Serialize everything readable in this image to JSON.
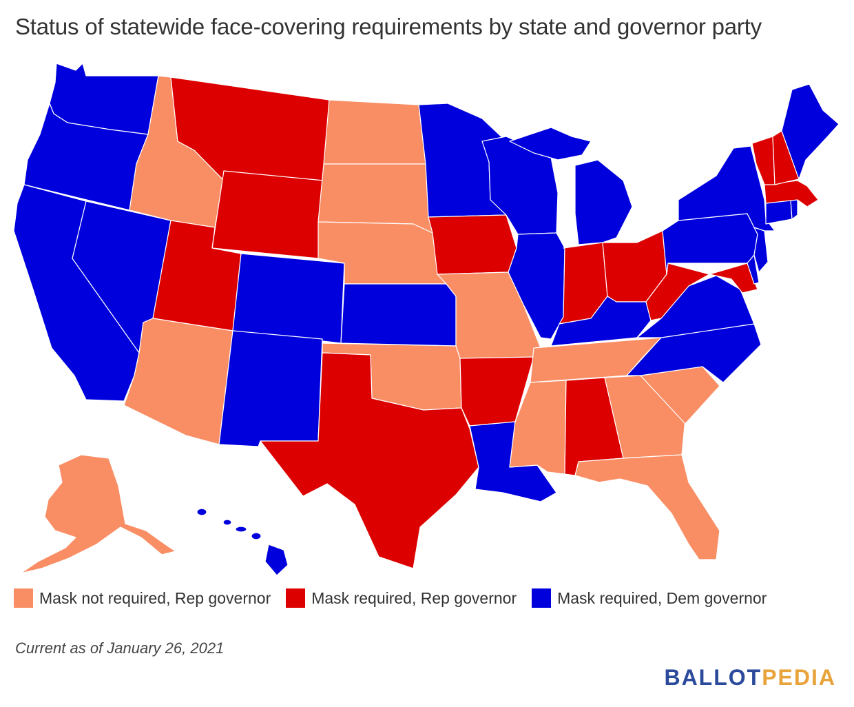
{
  "title": "Status of statewide face-covering requirements by state and governor party",
  "legend": [
    {
      "label": "Mask not required, Rep governor",
      "color": "#f98e65"
    },
    {
      "label": "Mask required, Rep governor",
      "color": "#dd0000"
    },
    {
      "label": "Mask required, Dem governor",
      "color": "#0000dd"
    }
  ],
  "note": "Current as of January 26, 2021",
  "logo": {
    "part1": "BALLOT",
    "part2": "PEDIA"
  },
  "map": {
    "categories": {
      "not_required_rep": [
        "AK",
        "ID",
        "ND",
        "SD",
        "NE",
        "MO",
        "OK",
        "AZ",
        "TN",
        "MS",
        "GA",
        "SC",
        "FL"
      ],
      "required_rep": [
        "MT",
        "WY",
        "UT",
        "TX",
        "IA",
        "AR",
        "AL",
        "IN",
        "OH",
        "WV",
        "VT",
        "NH",
        "MA",
        "MD"
      ],
      "required_dem": [
        "WA",
        "OR",
        "CA",
        "NV",
        "CO",
        "NM",
        "KS",
        "MN",
        "WI",
        "MI",
        "IL",
        "LA",
        "KY",
        "VA",
        "NC",
        "PA",
        "NY",
        "NJ",
        "DE",
        "CT",
        "RI",
        "ME",
        "HI"
      ]
    }
  }
}
